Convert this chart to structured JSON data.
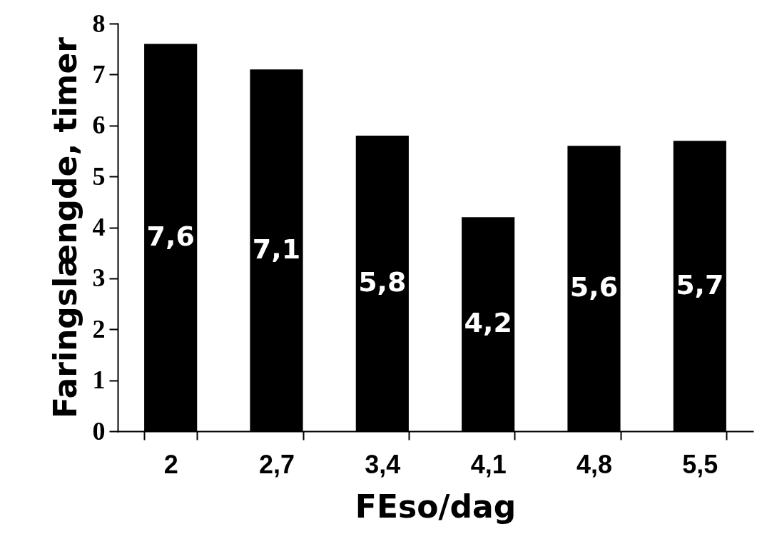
{
  "chart_data": {
    "type": "bar",
    "xlabel": "FEso/dag",
    "ylabel": "Faringslængde, timer",
    "categories": [
      "2",
      "2,7",
      "3,4",
      "4,1",
      "4,8",
      "5,5"
    ],
    "values": [
      7.6,
      7.1,
      5.8,
      4.2,
      5.6,
      5.7
    ],
    "value_labels": [
      "7,6",
      "7,1",
      "5,8",
      "4,2",
      "5,6",
      "5,7"
    ],
    "color": "#000000",
    "ylim": [
      0,
      8
    ],
    "yticks": [
      0,
      1,
      2,
      3,
      4,
      5,
      6,
      7,
      8
    ]
  }
}
